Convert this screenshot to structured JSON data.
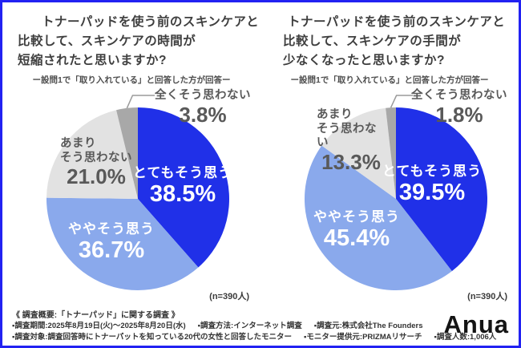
{
  "page": {
    "background": "#ffffff",
    "frame_color": "#2222f2",
    "logo_text": "Anua"
  },
  "chart_data": [
    {
      "type": "pie",
      "title": "トナーパッドを使う前のスキンケアと比較して、スキンケアの時間が短縮されたと思いますか?",
      "title_lines": [
        "トナーパッドを使う前のスキンケアと",
        "比較して、スキンケアの時間が",
        "短縮されたと思いますか?"
      ],
      "subtitle": "ー設問1で「取り入れている」と回答した方が回答ー",
      "sample_note": "(n=390人)",
      "labels": [
        "とてもそう思う",
        "ややそう思う",
        "あまりそう思わない",
        "全くそう思わない"
      ],
      "wrapped_labels": [
        [
          "とてもそう思う"
        ],
        [
          "ややそう思う"
        ],
        [
          "あまり",
          "そう思わない"
        ],
        [
          "全くそう思わない"
        ]
      ],
      "values": [
        38.5,
        36.7,
        21.0,
        3.8
      ],
      "percent_labels": [
        "38.5%",
        "36.7%",
        "21.0%",
        "3.8%"
      ],
      "colors": [
        "#2030e8",
        "#8aa9ec",
        "#e2e2e2",
        "#a8a8a8"
      ],
      "start_angle_deg": 0,
      "direction": "clockwise",
      "legend": "none"
    },
    {
      "type": "pie",
      "title": "トナーパッドを使う前のスキンケアと比較して、スキンケアの手間が少なくなったと思いますか?",
      "title_lines": [
        "トナーパッドを使う前のスキンケアと",
        "比較して、スキンケアの手間が",
        "少なくなったと思いますか?"
      ],
      "subtitle": "ー設問1で「取り入れている」と回答した方が回答ー",
      "sample_note": "(n=390人)",
      "labels": [
        "とてもそう思う",
        "ややそう思う",
        "あまりそう思わない",
        "全くそう思わない"
      ],
      "wrapped_labels": [
        [
          "とてもそう思う"
        ],
        [
          "ややそう思う"
        ],
        [
          "あまり",
          "そう思わない"
        ],
        [
          "全くそう思わない"
        ]
      ],
      "values": [
        39.5,
        45.4,
        13.3,
        1.8
      ],
      "percent_labels": [
        "39.5%",
        "45.4%",
        "13.3%",
        "1.8%"
      ],
      "colors": [
        "#2030e8",
        "#8aa9ec",
        "#e2e2e2",
        "#a8a8a8"
      ],
      "start_angle_deg": 0,
      "direction": "clockwise",
      "legend": "none"
    }
  ],
  "footer": {
    "heading": "《 調査概要:「トナーパッド」に関する調査 》",
    "line2": [
      "▪調査期間:2025年8月19日(火)〜2025年8月20日(水)",
      "▪調査方法:インターネット調査",
      "▪調査元:株式会社The Founders"
    ],
    "line3": [
      "▪調査対象:調査回答時にトナーパットを知っている20代の女性と回答したモニター",
      "▪モニター提供元:PRIZMAリサーチ",
      "▪調査人数:1,006人"
    ]
  }
}
